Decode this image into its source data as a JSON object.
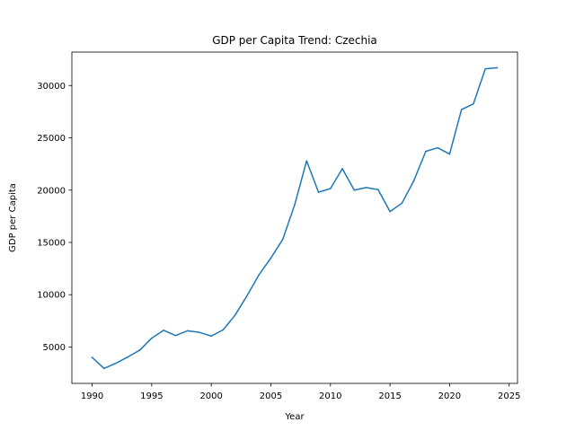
{
  "chart_data": {
    "type": "line",
    "title": "GDP per Capita Trend: Czechia",
    "xlabel": "Year",
    "ylabel": "GDP per Capita",
    "xlim": [
      1988.3,
      2025.7
    ],
    "ylim": [
      1520,
      33200
    ],
    "xticks": [
      1990,
      1995,
      2000,
      2005,
      2010,
      2015,
      2020,
      2025
    ],
    "yticks": [
      5000,
      10000,
      15000,
      20000,
      25000,
      30000
    ],
    "grid": false,
    "legend": "none",
    "line_color": "#1f77b4",
    "series": [
      {
        "x": [
          1990,
          1991,
          1992,
          1993,
          1994,
          1995,
          1996,
          1997,
          1998,
          1999,
          2000,
          2001,
          2002,
          2003,
          2004,
          2005,
          2006,
          2007,
          2008,
          2009,
          2010,
          2011,
          2012,
          2013,
          2014,
          2015,
          2016,
          2017,
          2018,
          2019,
          2020,
          2021,
          2022,
          2023,
          2024
        ],
        "values": [
          4000,
          2950,
          3450,
          4050,
          4700,
          5850,
          6600,
          6100,
          6550,
          6400,
          6050,
          6650,
          8050,
          9900,
          11900,
          13500,
          15300,
          18600,
          22800,
          19800,
          20150,
          22050,
          20000,
          20250,
          20050,
          17950,
          18750,
          20900,
          23700,
          24050,
          23450,
          27700,
          28250,
          31600,
          31700
        ]
      }
    ]
  }
}
